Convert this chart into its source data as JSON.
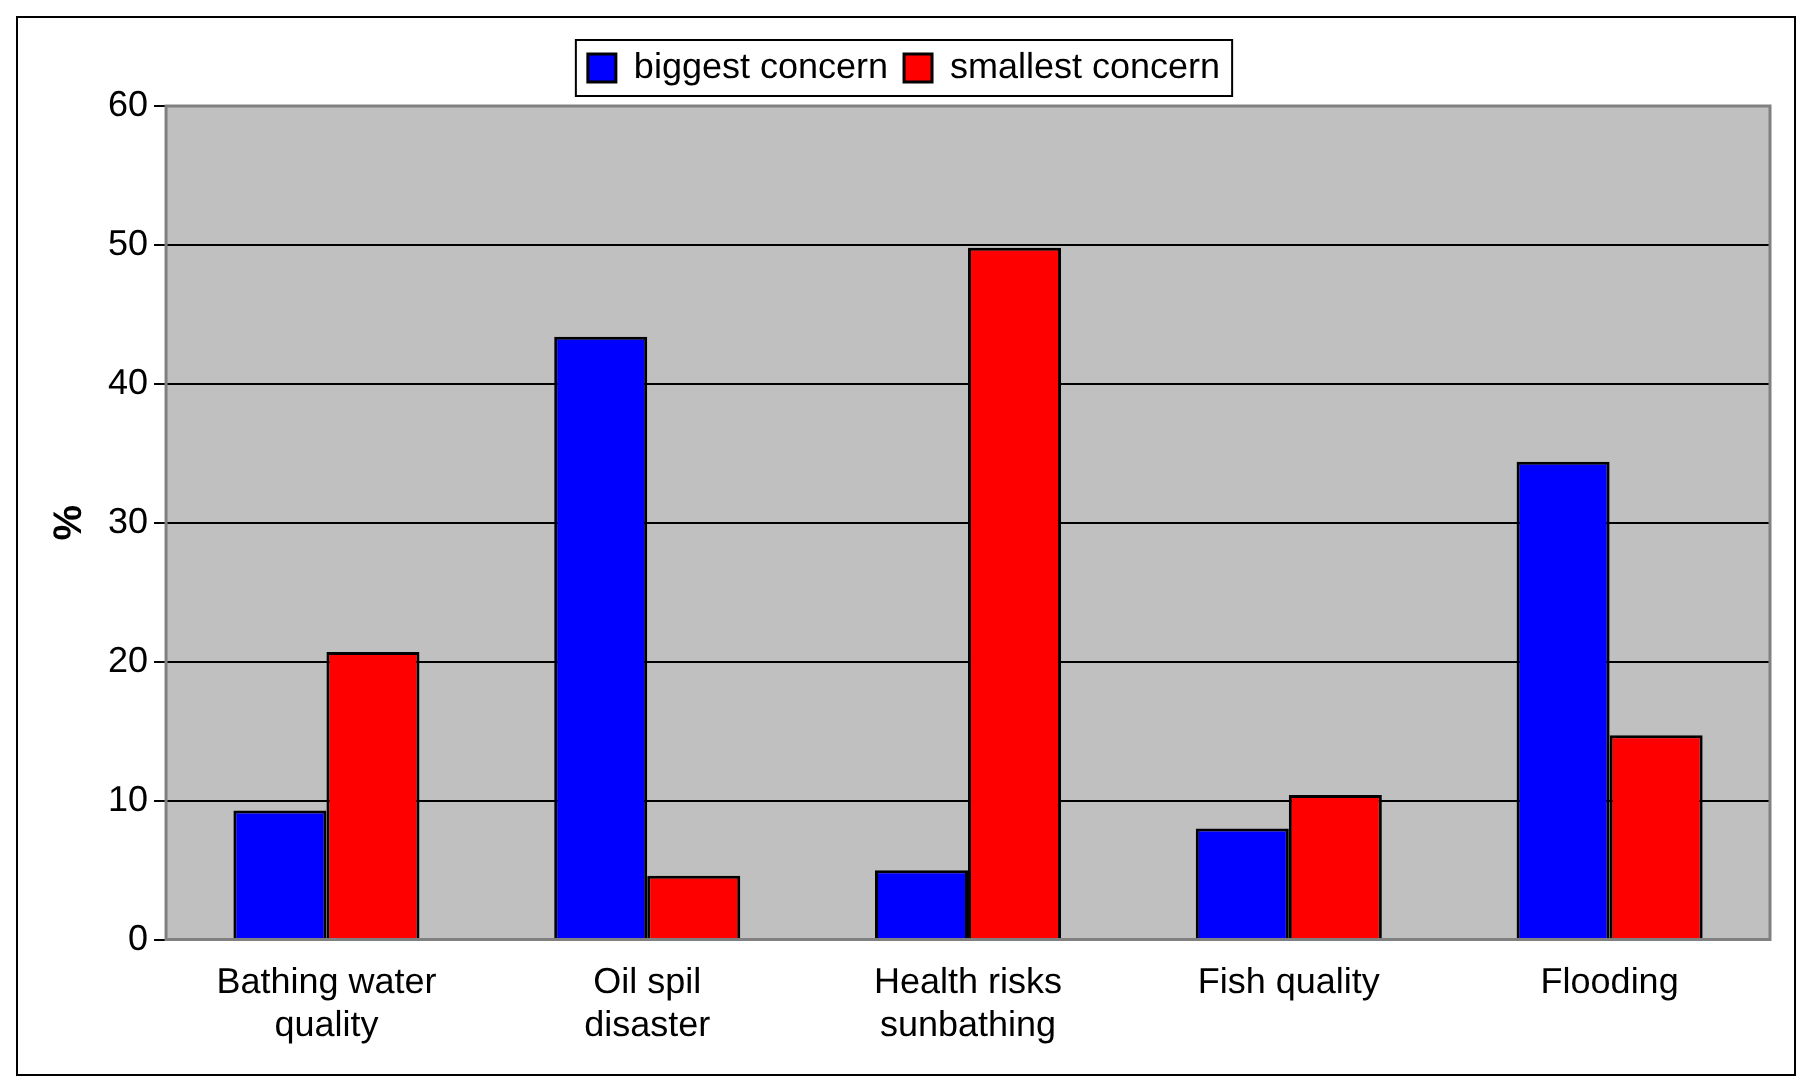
{
  "chart_data": {
    "type": "bar",
    "ylabel": "%",
    "categories": [
      "Bathing water quality",
      "Oil spil disaster",
      "Health risks sunbathing",
      "Fish quality",
      "Flooding"
    ],
    "series": [
      {
        "name": "biggest concern",
        "color": "#0000ff",
        "values": [
          9.3,
          43.4,
          5.0,
          8.0,
          34.4
        ]
      },
      {
        "name": "smallest concern",
        "color": "#ff0000",
        "values": [
          20.7,
          4.6,
          49.8,
          10.4,
          14.7
        ]
      }
    ],
    "ylim": [
      0,
      60
    ],
    "yticks": [
      0,
      10,
      20,
      30,
      40,
      50,
      60
    ],
    "grid": "y",
    "legend": "top"
  }
}
